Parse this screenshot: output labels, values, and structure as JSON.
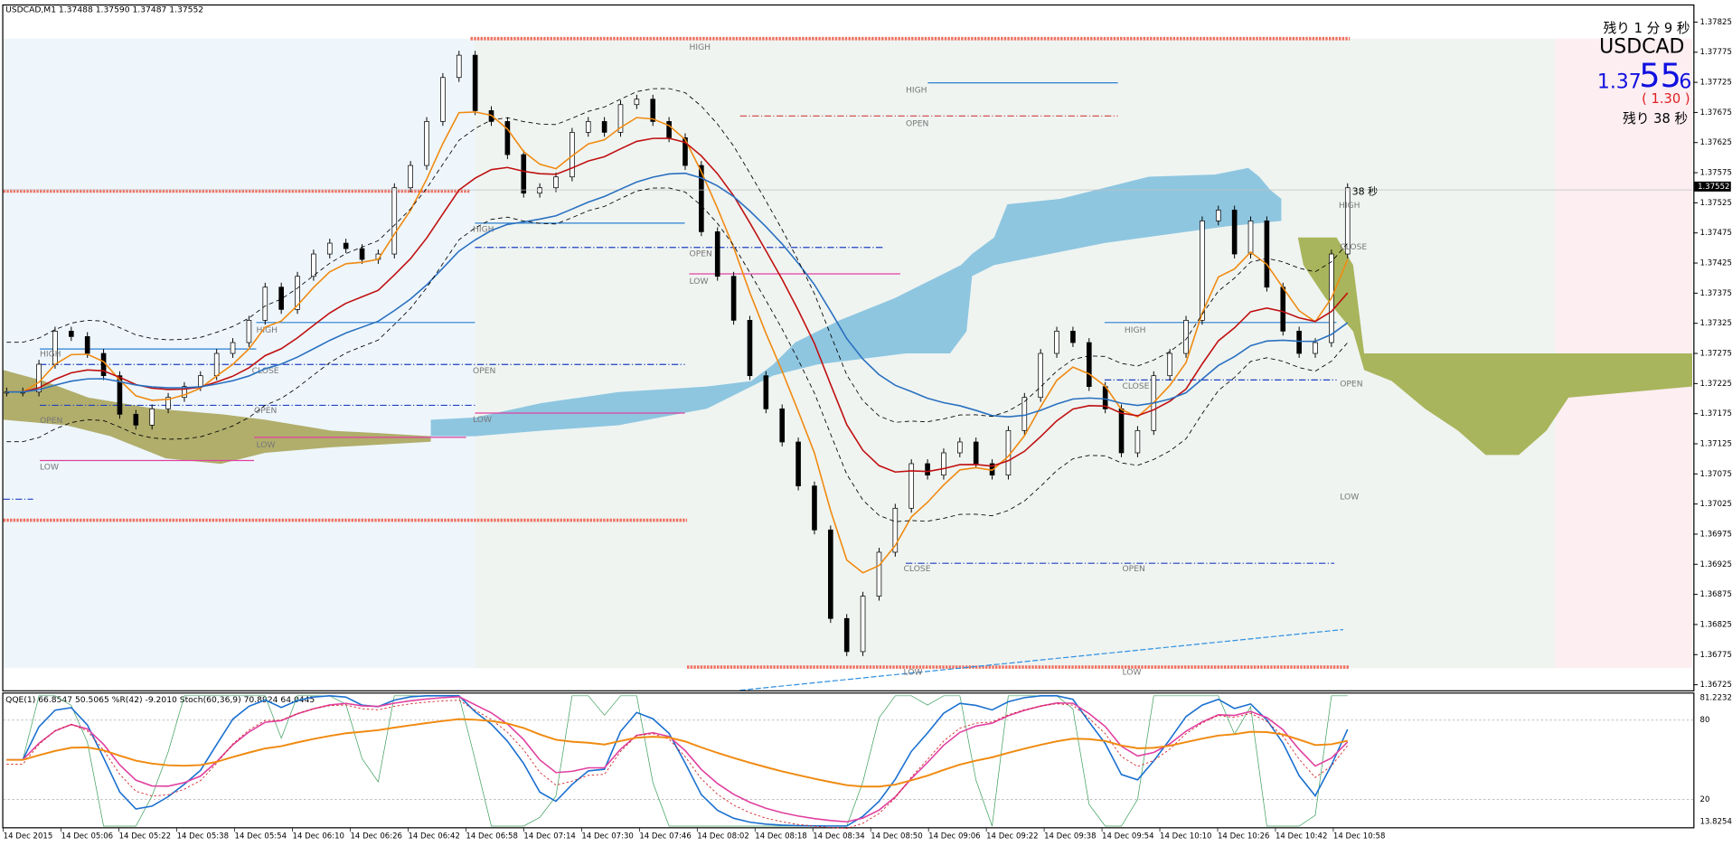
{
  "header": {
    "symbol_info": "USDCAD,M1  1.37488 1.37590 1.37487 1.37552"
  },
  "price_axis": {
    "ticks": [
      1.37825,
      1.37775,
      1.37725,
      1.37675,
      1.37625,
      1.37575,
      1.37525,
      1.37475,
      1.37425,
      1.37375,
      1.37325,
      1.37275,
      1.37225,
      1.37175,
      1.37125,
      1.37075,
      1.37025,
      1.36975,
      1.36925,
      1.36875,
      1.36825,
      1.36775,
      1.36725
    ],
    "current": 1.37552
  },
  "time_axis": [
    "14 Dec 2015",
    "14 Dec 05:06",
    "14 Dec 05:22",
    "14 Dec 05:38",
    "14 Dec 05:54",
    "14 Dec 06:10",
    "14 Dec 06:26",
    "14 Dec 06:42",
    "14 Dec 06:58",
    "14 Dec 07:14",
    "14 Dec 07:30",
    "14 Dec 07:46",
    "14 Dec 08:02",
    "14 Dec 08:18",
    "14 Dec 08:34",
    "14 Dec 08:50",
    "14 Dec 09:06",
    "14 Dec 09:22",
    "14 Dec 09:38",
    "14 Dec 09:54",
    "14 Dec 10:10",
    "14 Dec 10:26",
    "14 Dec 10:42",
    "14 Dec 10:58"
  ],
  "annotations": [
    "HIGH",
    "HIGH",
    "OPEN",
    "HIGH",
    "OPEN",
    "LOW",
    "HIGH",
    "HIGH",
    "CLOSE",
    "OPEN",
    "OPEN",
    "OPEN",
    "LOW",
    "LOW",
    "LOW",
    "CLOSE",
    "LOW",
    "HIGH",
    "CLOSE",
    "OPEN",
    "LOW",
    "HIGH",
    "CLOSE",
    "OPEN",
    "LOW"
  ],
  "overlay": {
    "remaining_1": "残り 1 分 9 秒",
    "symbol": "USDCAD",
    "price_a": "1.37",
    "price_b": "55",
    "price_c": "6",
    "change": "( 1.30 )",
    "remaining_2": "残り 38 秒",
    "timer": "38 秒"
  },
  "indicator": {
    "header": "QQE(1) 66.8547 50.5065  %R(42) -9.2010  Stoch(60,36,9) 70.8924 64.0445",
    "levels": [
      81.2232,
      80,
      20,
      13.8254
    ]
  },
  "closes": [
    1.37211,
    1.37211,
    1.37257,
    1.37312,
    1.37303,
    1.37275,
    1.37238,
    1.37174,
    1.37156,
    1.37183,
    1.37202,
    1.3722,
    1.37238,
    1.37275,
    1.37293,
    1.3733,
    1.37385,
    1.37348,
    1.37403,
    1.3744,
    1.37458,
    1.37449,
    1.37431,
    1.3744,
    1.3755,
    1.37587,
    1.3766,
    1.37733,
    1.3777,
    1.37678,
    1.3766,
    1.37605,
    1.37541,
    1.3755,
    1.37568,
    1.37642,
    1.3766,
    1.37642,
    1.37688,
    1.37697,
    1.3766,
    1.37633,
    1.37587,
    1.37477,
    1.37403,
    1.3733,
    1.37238,
    1.37183,
    1.37128,
    1.37055,
    1.36982,
    1.36835,
    1.3678,
    1.36872,
    1.36945,
    1.37018,
    1.37092,
    1.37073,
    1.3711,
    1.37128,
    1.37092,
    1.37073,
    1.37147,
    1.37202,
    1.37275,
    1.37312,
    1.37293,
    1.3722,
    1.37183,
    1.3711,
    1.37147,
    1.37238,
    1.37275,
    1.3733,
    1.37495,
    1.37513,
    1.3744,
    1.37495,
    1.37385,
    1.37312,
    1.37275,
    1.37293,
    1.3744,
    1.3755
  ]
}
